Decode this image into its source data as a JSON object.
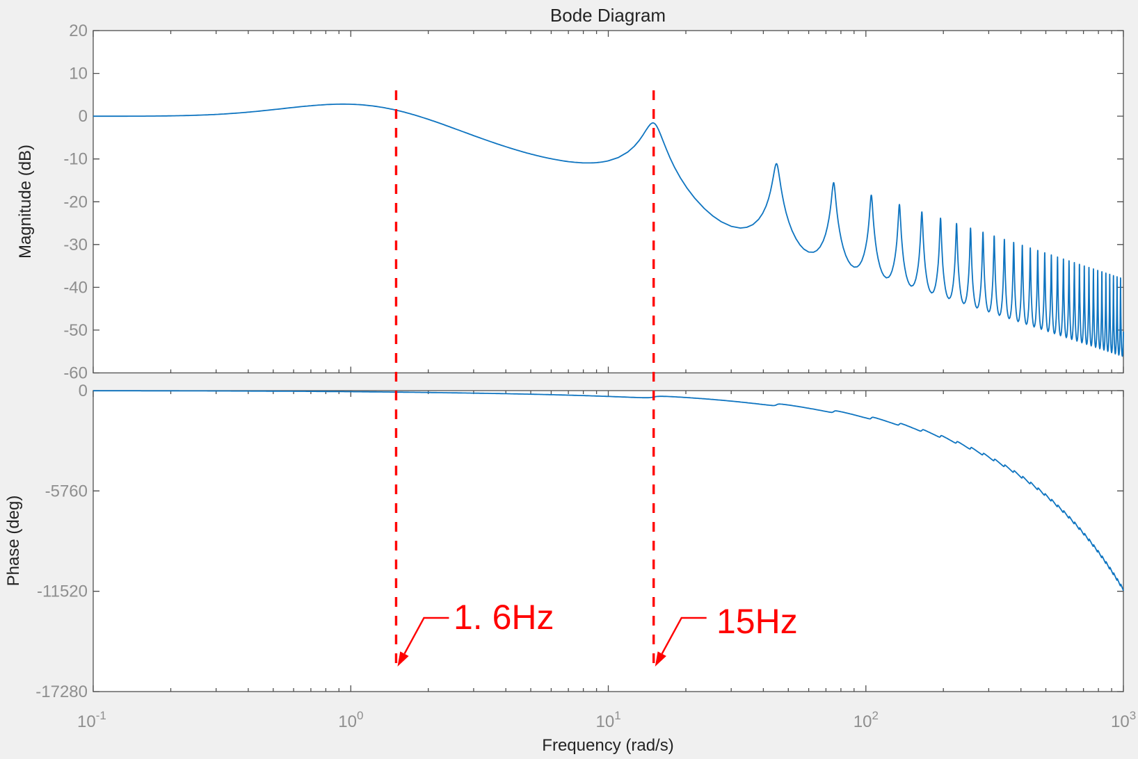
{
  "figure": {
    "title": "Bode Diagram",
    "xlabel": "Frequency  (rad/s)",
    "colors": {
      "background": "#f0f0f0",
      "plot_background": "#ffffff",
      "curve": "#0E74C0",
      "spine": "#4e4e4e",
      "tick_label": "#8e8e8e",
      "text": "#242424",
      "annotation": "#ff0000"
    }
  },
  "chart_data": [
    {
      "type": "line",
      "id": "magnitude_plot",
      "title": "Bode Diagram",
      "ylabel": "Magnitude (dB)",
      "xscale": "log",
      "xlim": [
        0.1,
        1000
      ],
      "ylim": [
        -60,
        20
      ],
      "yticks": [
        20,
        10,
        0,
        -10,
        -20,
        -30,
        -40,
        -50,
        -60
      ],
      "xtick_exponents": [
        -1,
        0,
        1,
        2,
        3
      ],
      "grid": false,
      "legend": null,
      "model": {
        "type": "comb_resonance_magnitude_db",
        "pole_rad_s": 1.55,
        "hump_db": 4.4,
        "hump_center_rad_s": 1.2,
        "hump_width_decades": 0.42,
        "comb_r": 0.78,
        "comb_delay_s": 0.20944,
        "first_resonance_rad_s": 15,
        "resonance_spacing_rad_s": 30
      },
      "key_points_rad_s_db": [
        [
          0.1,
          0.1
        ],
        [
          1,
          2.6
        ],
        [
          1.5,
          1.5
        ],
        [
          7.3,
          -9.4
        ],
        [
          15,
          -1.8
        ],
        [
          30,
          -25.8
        ],
        [
          45,
          -11.5
        ],
        [
          75,
          -15.6
        ],
        [
          105,
          -18.5
        ],
        [
          300,
          -27.7
        ],
        [
          975,
          -37.8
        ],
        [
          1000,
          -56
        ]
      ],
      "resonance_peaks_rad_s": [
        15,
        45,
        75,
        105,
        135,
        165,
        195,
        225,
        255,
        285,
        315,
        345,
        375,
        405,
        435,
        465,
        495,
        525,
        555,
        585,
        615,
        645,
        675,
        705,
        735,
        765,
        795,
        825,
        855,
        885,
        915,
        945,
        975
      ]
    },
    {
      "type": "line",
      "id": "phase_plot",
      "ylabel": "Phase (deg)",
      "xlabel": "Frequency  (rad/s)",
      "xscale": "log",
      "xlim": [
        0.1,
        1000
      ],
      "ylim": [
        -17280,
        0
      ],
      "yticks": [
        0,
        -5760,
        -11520,
        -17280
      ],
      "xtick_exponents": [
        -1,
        0,
        1,
        2,
        3
      ],
      "grid": false,
      "legend": null,
      "model": {
        "type": "delay_phase_deg",
        "delay_s": 0.1847,
        "pole_rad_s": 1.55,
        "log_term_deg": 180,
        "log_term_scale_rad_s": 15,
        "comb_r": 0.9,
        "comb_delay_s": 0.20944
      },
      "key_points_rad_s_deg": [
        [
          0.1,
          -5
        ],
        [
          1,
          -44
        ],
        [
          10,
          -240
        ],
        [
          15,
          -368
        ],
        [
          100,
          -1560
        ],
        [
          459,
          -5500
        ],
        [
          1000,
          -11460
        ]
      ]
    }
  ],
  "annotations": [
    {
      "freq_rad_s": 1.5,
      "label": "1. 6Hz"
    },
    {
      "freq_rad_s": 15,
      "label": "15Hz"
    }
  ]
}
